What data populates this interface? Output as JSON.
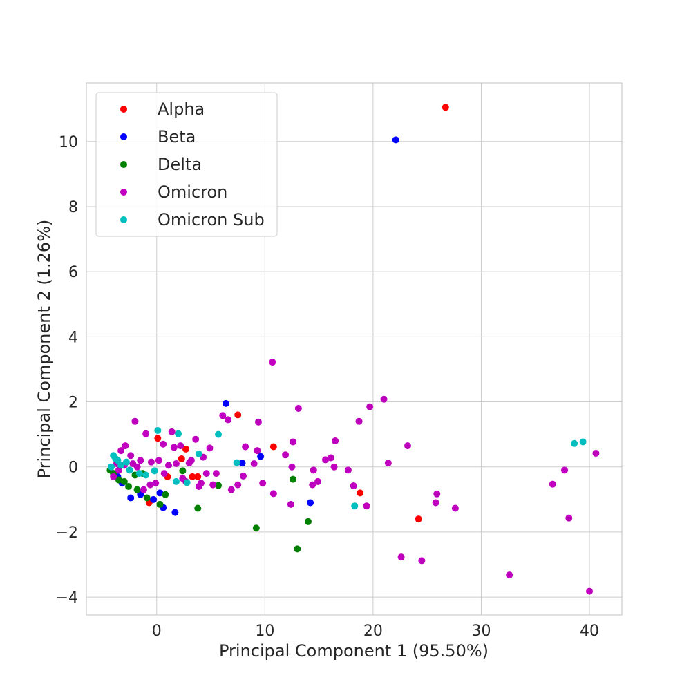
{
  "chart_data": {
    "type": "scatter",
    "title": "",
    "xlabel": "Principal Component 1 (95.50%)",
    "ylabel": "Principal Component 2 (1.26%)",
    "xlim": [
      -6.5,
      43
    ],
    "ylim": [
      -4.55,
      11.8
    ],
    "xticks": [
      0,
      10,
      20,
      30,
      40
    ],
    "yticks": [
      -4,
      -2,
      0,
      2,
      4,
      6,
      8,
      10
    ],
    "xtick_labels": [
      "0",
      "10",
      "20",
      "30",
      "40"
    ],
    "ytick_labels": [
      "−4",
      "−2",
      "0",
      "2",
      "4",
      "6",
      "8",
      "10"
    ],
    "grid": true,
    "legend_position": "top-left",
    "series": [
      {
        "name": "Alpha",
        "color": "#ff0000",
        "x": [
          26.7,
          7.5,
          10.8,
          18.8,
          24.2,
          0.1,
          2.7,
          3.3,
          3.8,
          2.3,
          1.0,
          -0.7
        ],
        "y": [
          11.05,
          1.6,
          0.62,
          -0.8,
          -1.6,
          0.88,
          0.55,
          -0.3,
          -0.3,
          0.25,
          -0.3,
          -1.1
        ]
      },
      {
        "name": "Beta",
        "color": "#0000ff",
        "x": [
          22.1,
          6.4,
          9.6,
          7.9,
          14.2,
          1.7,
          0.6,
          -1.5,
          -2.4,
          -0.3,
          0.3,
          -3.2,
          -3.6
        ],
        "y": [
          10.05,
          1.95,
          0.32,
          0.12,
          -1.1,
          -1.4,
          -1.25,
          -0.85,
          -0.95,
          -1.0,
          -0.8,
          -0.5,
          -0.3
        ]
      },
      {
        "name": "Delta",
        "color": "#008000",
        "x": [
          13.0,
          9.2,
          14.0,
          12.6,
          3.8,
          5.7,
          2.4,
          0.8,
          0.3,
          -0.9,
          -1.8,
          -2.6,
          -3.5,
          -4.0,
          -4.3,
          -3.0,
          -2.0,
          -1.3
        ],
        "y": [
          -2.52,
          -1.88,
          -1.68,
          -0.38,
          -1.27,
          -0.57,
          -0.12,
          -0.85,
          -1.15,
          -0.95,
          -0.7,
          -0.6,
          -0.4,
          -0.2,
          -0.1,
          -0.45,
          -0.25,
          -0.2
        ]
      },
      {
        "name": "Omicron",
        "color": "#bf00bf",
        "x": [
          10.7,
          40.0,
          32.6,
          40.6,
          38.1,
          37.7,
          36.6,
          24.5,
          22.6,
          27.6,
          25.9,
          25.8,
          23.2,
          21.4,
          21.0,
          19.7,
          18.7,
          19.4,
          18.2,
          17.7,
          16.5,
          16.1,
          15.6,
          16.4,
          14.9,
          14.4,
          13.1,
          12.6,
          12.4,
          11.9,
          10.8,
          9.8,
          9.4,
          9.3,
          8.2,
          8.0,
          7.5,
          6.6,
          6.9,
          6.1,
          5.5,
          4.9,
          4.3,
          4.1,
          3.6,
          3.2,
          3.0,
          2.7,
          2.2,
          1.8,
          1.4,
          1.1,
          0.6,
          0.2,
          -0.1,
          -0.5,
          -1.0,
          -1.5,
          -2.0,
          -2.4,
          -2.9,
          -3.3,
          -3.7,
          -4.0,
          -1.8,
          14.5,
          12.5,
          9.0,
          5.2,
          4.6,
          3.9,
          2.4,
          1.6,
          0.7,
          -0.6,
          -1.2,
          -2.2,
          -3.0,
          -3.5
        ],
        "y": [
          3.22,
          -3.82,
          -3.32,
          0.42,
          -1.57,
          -0.1,
          -0.53,
          -2.88,
          -2.77,
          -1.27,
          -0.83,
          -1.1,
          0.65,
          0.12,
          2.08,
          1.85,
          1.4,
          -1.2,
          -0.58,
          -0.1,
          0.8,
          0.28,
          0.22,
          0.0,
          -0.45,
          -0.55,
          1.8,
          0.77,
          -1.15,
          0.37,
          -0.82,
          -0.5,
          1.38,
          0.5,
          0.62,
          -0.28,
          -0.55,
          1.45,
          -0.7,
          1.58,
          -0.2,
          0.58,
          0.3,
          -0.5,
          0.85,
          0.2,
          0.12,
          -0.45,
          0.65,
          0.1,
          1.08,
          0.05,
          0.7,
          0.2,
          -0.5,
          0.15,
          1.02,
          0.2,
          1.4,
          0.35,
          0.65,
          0.5,
          0.1,
          -0.3,
          0.0,
          -0.1,
          0.0,
          0.1,
          -0.55,
          -0.2,
          -0.6,
          -0.35,
          0.6,
          -0.2,
          -0.55,
          -0.7,
          0.1,
          0.05,
          -0.1
        ]
      },
      {
        "name": "Omicron Sub",
        "color": "#00bfbf",
        "x": [
          39.4,
          38.6,
          18.3,
          5.7,
          7.4,
          3.9,
          2.0,
          0.1,
          2.8,
          1.8,
          -0.2,
          -1.6,
          -2.8,
          -3.6,
          -4.0,
          -3.3,
          -2.5,
          -1.0,
          -3.8,
          -4.2
        ],
        "y": [
          0.77,
          0.72,
          -1.2,
          1.0,
          0.13,
          0.4,
          1.02,
          1.12,
          -0.48,
          -0.45,
          -0.12,
          -0.2,
          0.15,
          0.2,
          0.35,
          0.05,
          -0.1,
          -0.25,
          0.25,
          0.0
        ]
      }
    ]
  }
}
